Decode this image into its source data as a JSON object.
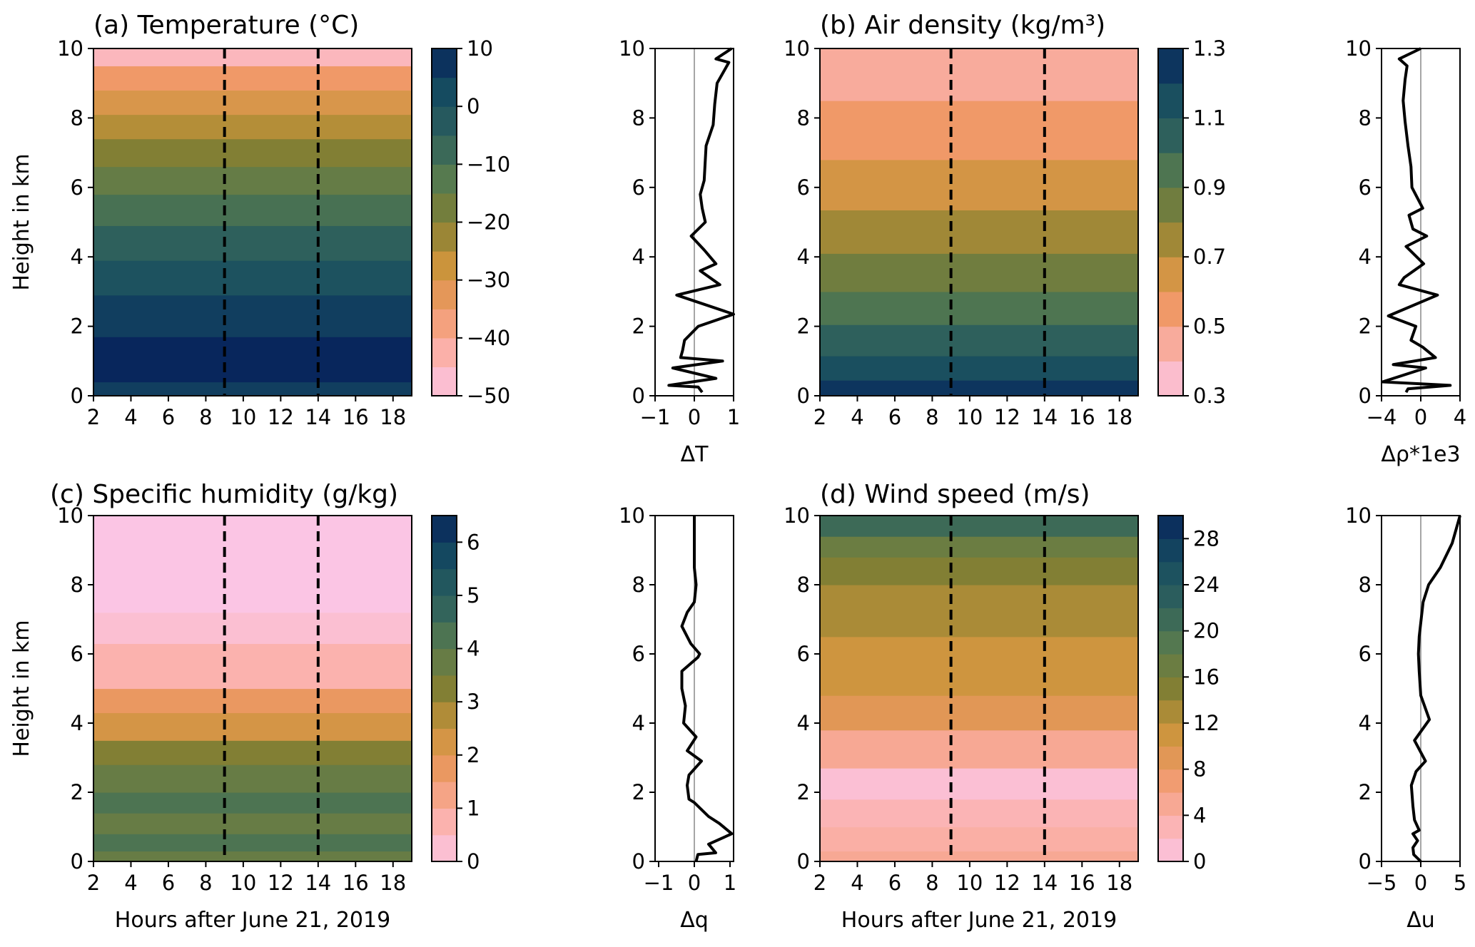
{
  "figure": {
    "common": {
      "ylabel": "Height in km",
      "xlabel": "Hours after June 21, 2019",
      "x_ticks": [
        "2",
        "4",
        "6",
        "8",
        "10",
        "12",
        "14",
        "16",
        "18"
      ],
      "y_ticks": [
        "0",
        "2",
        "4",
        "6",
        "8",
        "10"
      ]
    }
  },
  "chart_data": [
    {
      "id": "a",
      "type": "heatmap",
      "title": "(a) Temperature (°C)",
      "xlim": [
        2,
        19
      ],
      "ylim": [
        0,
        10
      ],
      "vlines": [
        9,
        14
      ],
      "xlabel": "",
      "ylabel": "Height in km",
      "colorbar": {
        "levels": [
          -50,
          -45,
          -40,
          -35,
          -30,
          -25,
          -20,
          -15,
          -10,
          -5,
          0,
          5,
          10
        ],
        "ticks": [
          "10",
          "0",
          "−10",
          "−20",
          "−30",
          "−40",
          "−50"
        ],
        "tick_values": [
          10,
          0,
          -10,
          -20,
          -30,
          -40,
          -50
        ]
      },
      "bands": [
        {
          "y0": 0.0,
          "y1": 0.4,
          "level": 5
        },
        {
          "y0": 0.4,
          "y1": 1.7,
          "level": 10
        },
        {
          "y0": 1.7,
          "y1": 2.9,
          "level": 5
        },
        {
          "y0": 2.9,
          "y1": 3.9,
          "level": 0
        },
        {
          "y0": 3.9,
          "y1": 4.9,
          "level": -5
        },
        {
          "y0": 4.9,
          "y1": 5.8,
          "level": -10
        },
        {
          "y0": 5.8,
          "y1": 6.6,
          "level": -15
        },
        {
          "y0": 6.6,
          "y1": 7.4,
          "level": -20
        },
        {
          "y0": 7.4,
          "y1": 8.1,
          "level": -25
        },
        {
          "y0": 8.1,
          "y1": 8.8,
          "level": -30
        },
        {
          "y0": 8.8,
          "y1": 9.5,
          "level": -35
        },
        {
          "y0": 9.5,
          "y1": 10.0,
          "level": -45
        }
      ],
      "profile": {
        "label": "ΔT",
        "xlim": [
          -1,
          1
        ],
        "x_ticks": [
          "−1",
          "0",
          "1"
        ],
        "x_tick_values": [
          -1,
          0,
          1
        ],
        "x": [
          0.2,
          0.1,
          -0.65,
          0.55,
          -0.55,
          0.72,
          -0.35,
          -0.3,
          -0.25,
          0.1,
          1.0,
          -0.45,
          0.65,
          0.15,
          0.55,
          0.25,
          -0.08,
          0.28,
          0.2,
          0.15,
          0.25,
          0.28,
          0.3,
          0.48,
          0.52,
          0.58,
          0.88,
          0.55,
          0.95
        ],
        "y": [
          0.1,
          0.25,
          0.3,
          0.5,
          0.8,
          1.0,
          1.1,
          1.3,
          1.6,
          2.0,
          2.35,
          2.9,
          3.2,
          3.6,
          3.8,
          4.2,
          4.6,
          5.0,
          5.4,
          5.8,
          6.2,
          6.8,
          7.2,
          7.8,
          8.4,
          9.0,
          9.6,
          9.7,
          10.0
        ]
      }
    },
    {
      "id": "b",
      "type": "heatmap",
      "title": "(b) Air density (kg/m³)",
      "xlim": [
        2,
        19
      ],
      "ylim": [
        0,
        10
      ],
      "vlines": [
        9,
        14
      ],
      "xlabel": "",
      "ylabel": "",
      "colorbar": {
        "levels": [
          0.3,
          0.4,
          0.5,
          0.6,
          0.7,
          0.8,
          0.9,
          1.0,
          1.1,
          1.2,
          1.3
        ],
        "ticks": [
          "1.3",
          "1.1",
          "0.9",
          "0.7",
          "0.5",
          "0.3"
        ],
        "tick_values": [
          1.3,
          1.1,
          0.9,
          0.7,
          0.5,
          0.3
        ]
      },
      "bands": [
        {
          "y0": 0.0,
          "y1": 0.45,
          "level": 1.25
        },
        {
          "y0": 0.45,
          "y1": 1.15,
          "level": 1.15
        },
        {
          "y0": 1.15,
          "y1": 2.05,
          "level": 1.05
        },
        {
          "y0": 2.05,
          "y1": 3.0,
          "level": 0.95
        },
        {
          "y0": 3.0,
          "y1": 4.1,
          "level": 0.85
        },
        {
          "y0": 4.1,
          "y1": 5.35,
          "level": 0.75
        },
        {
          "y0": 5.35,
          "y1": 6.8,
          "level": 0.65
        },
        {
          "y0": 6.8,
          "y1": 8.5,
          "level": 0.55
        },
        {
          "y0": 8.5,
          "y1": 10.0,
          "level": 0.45
        }
      ],
      "profile": {
        "label": "Δρ*1e3",
        "xlim": [
          -4,
          4
        ],
        "x_ticks": [
          "−4",
          "0",
          "4"
        ],
        "x_tick_values": [
          -4,
          0,
          4
        ],
        "x": [
          -1.5,
          -1.3,
          3.0,
          -3.9,
          0.5,
          -2.8,
          1.5,
          0.2,
          -1.0,
          -0.5,
          -3.3,
          1.7,
          -2.2,
          -1.7,
          0.3,
          -1.5,
          0.6,
          -0.8,
          -1.2,
          0.2,
          -0.9,
          -1.0,
          -1.3,
          -1.6,
          -1.8,
          -1.6,
          -1.4,
          -2.2,
          0.0
        ],
        "y": [
          0.1,
          0.2,
          0.3,
          0.4,
          0.8,
          0.9,
          1.1,
          1.4,
          1.6,
          2.0,
          2.3,
          2.9,
          3.2,
          3.4,
          3.8,
          4.3,
          4.6,
          4.8,
          5.2,
          5.4,
          6.0,
          6.6,
          7.2,
          7.9,
          8.5,
          9.1,
          9.5,
          9.7,
          10.0
        ]
      }
    },
    {
      "id": "c",
      "type": "heatmap",
      "title": "(c) Specific humidity (g/kg)",
      "xlim": [
        2,
        19
      ],
      "ylim": [
        0,
        10
      ],
      "vlines": [
        9,
        14
      ],
      "xlabel": "Hours after June 21, 2019",
      "ylabel": "Height in km",
      "colorbar": {
        "levels": [
          0,
          0.5,
          1,
          1.5,
          2,
          2.5,
          3,
          3.5,
          4,
          4.5,
          5,
          5.5,
          6,
          6.5
        ],
        "ticks": [
          "6",
          "5",
          "4",
          "3",
          "2",
          "1",
          "0"
        ],
        "tick_values": [
          6,
          5,
          4,
          3,
          2,
          1,
          0
        ]
      },
      "bands": [
        {
          "y0": 0.0,
          "y1": 0.3,
          "level": 3.75
        },
        {
          "y0": 0.3,
          "y1": 0.8,
          "level": 4.25
        },
        {
          "y0": 0.8,
          "y1": 1.4,
          "level": 3.75
        },
        {
          "y0": 1.4,
          "y1": 2.0,
          "level": 4.25
        },
        {
          "y0": 2.0,
          "y1": 2.8,
          "level": 3.75
        },
        {
          "y0": 2.8,
          "y1": 3.5,
          "level": 3.25
        },
        {
          "y0": 3.5,
          "y1": 4.3,
          "level": 2.25
        },
        {
          "y0": 4.3,
          "y1": 5.0,
          "level": 1.75
        },
        {
          "y0": 5.0,
          "y1": 6.3,
          "level": 0.75
        },
        {
          "y0": 6.3,
          "y1": 7.2,
          "level": 0.25
        },
        {
          "y0": 7.2,
          "y1": 10.0,
          "level": 0.0
        }
      ],
      "profile": {
        "label": "Δq",
        "xlim": [
          -1.1,
          1.1
        ],
        "x_ticks": [
          "−1",
          "0",
          "1"
        ],
        "x_tick_values": [
          -1,
          0,
          1
        ],
        "x": [
          0.05,
          0.1,
          0.6,
          0.4,
          1.05,
          0.7,
          0.4,
          0.0,
          -0.15,
          -0.2,
          -0.15,
          0.2,
          -0.2,
          0.05,
          -0.3,
          -0.25,
          -0.35,
          -0.35,
          0.1,
          0.15,
          -0.1,
          -0.35,
          -0.2,
          0.0,
          0.05,
          0.0,
          0.0,
          0.0,
          0.0
        ],
        "y": [
          0.0,
          0.2,
          0.25,
          0.5,
          0.8,
          1.1,
          1.3,
          1.7,
          1.8,
          2.2,
          2.5,
          2.9,
          3.2,
          3.6,
          4.0,
          4.5,
          5.0,
          5.5,
          5.9,
          6.0,
          6.3,
          6.8,
          7.2,
          7.5,
          8.0,
          8.5,
          9.0,
          9.5,
          10.0
        ]
      }
    },
    {
      "id": "d",
      "type": "heatmap",
      "title": "(d) Wind speed (m/s)",
      "xlim": [
        2,
        19
      ],
      "ylim": [
        0,
        10
      ],
      "vlines": [
        9,
        14
      ],
      "xlabel": "Hours after June 21, 2019",
      "ylabel": "",
      "colorbar": {
        "levels": [
          0,
          2,
          4,
          6,
          8,
          10,
          12,
          14,
          16,
          18,
          20,
          22,
          24,
          26,
          28,
          30
        ],
        "ticks": [
          "28",
          "24",
          "20",
          "16",
          "12",
          "8",
          "4",
          "0"
        ],
        "tick_values": [
          28,
          24,
          20,
          16,
          12,
          8,
          4,
          0
        ]
      },
      "bands": [
        {
          "y0": 0.0,
          "y1": 0.3,
          "level": 5
        },
        {
          "y0": 0.3,
          "y1": 1.0,
          "level": 4
        },
        {
          "y0": 1.0,
          "y1": 1.8,
          "level": 3
        },
        {
          "y0": 1.8,
          "y1": 2.7,
          "level": 1
        },
        {
          "y0": 2.7,
          "y1": 3.8,
          "level": 5
        },
        {
          "y0": 3.8,
          "y1": 4.8,
          "level": 9
        },
        {
          "y0": 4.8,
          "y1": 6.5,
          "level": 11
        },
        {
          "y0": 6.5,
          "y1": 8.0,
          "level": 13
        },
        {
          "y0": 8.0,
          "y1": 8.8,
          "level": 15
        },
        {
          "y0": 8.8,
          "y1": 9.4,
          "level": 17
        },
        {
          "y0": 9.4,
          "y1": 10.0,
          "level": 21
        }
      ],
      "profile": {
        "label": "Δu",
        "xlim": [
          -5,
          5
        ],
        "x_ticks": [
          "−5",
          "0",
          "5"
        ],
        "x_tick_values": [
          -5,
          0,
          5
        ],
        "x": [
          0.0,
          -0.9,
          -1.0,
          -0.4,
          -1.0,
          -0.2,
          -0.8,
          -1.0,
          -1.2,
          -0.6,
          0.6,
          -0.8,
          1.1,
          0.0,
          -0.2,
          -0.3,
          -0.2,
          0.3,
          1.0,
          2.5,
          4.0,
          5.0
        ],
        "y": [
          0.0,
          0.2,
          0.4,
          0.6,
          0.8,
          0.9,
          1.2,
          1.6,
          2.2,
          2.6,
          2.9,
          3.5,
          4.1,
          4.8,
          5.5,
          6.0,
          6.5,
          7.5,
          8.0,
          8.5,
          9.2,
          10.0
        ]
      }
    }
  ]
}
